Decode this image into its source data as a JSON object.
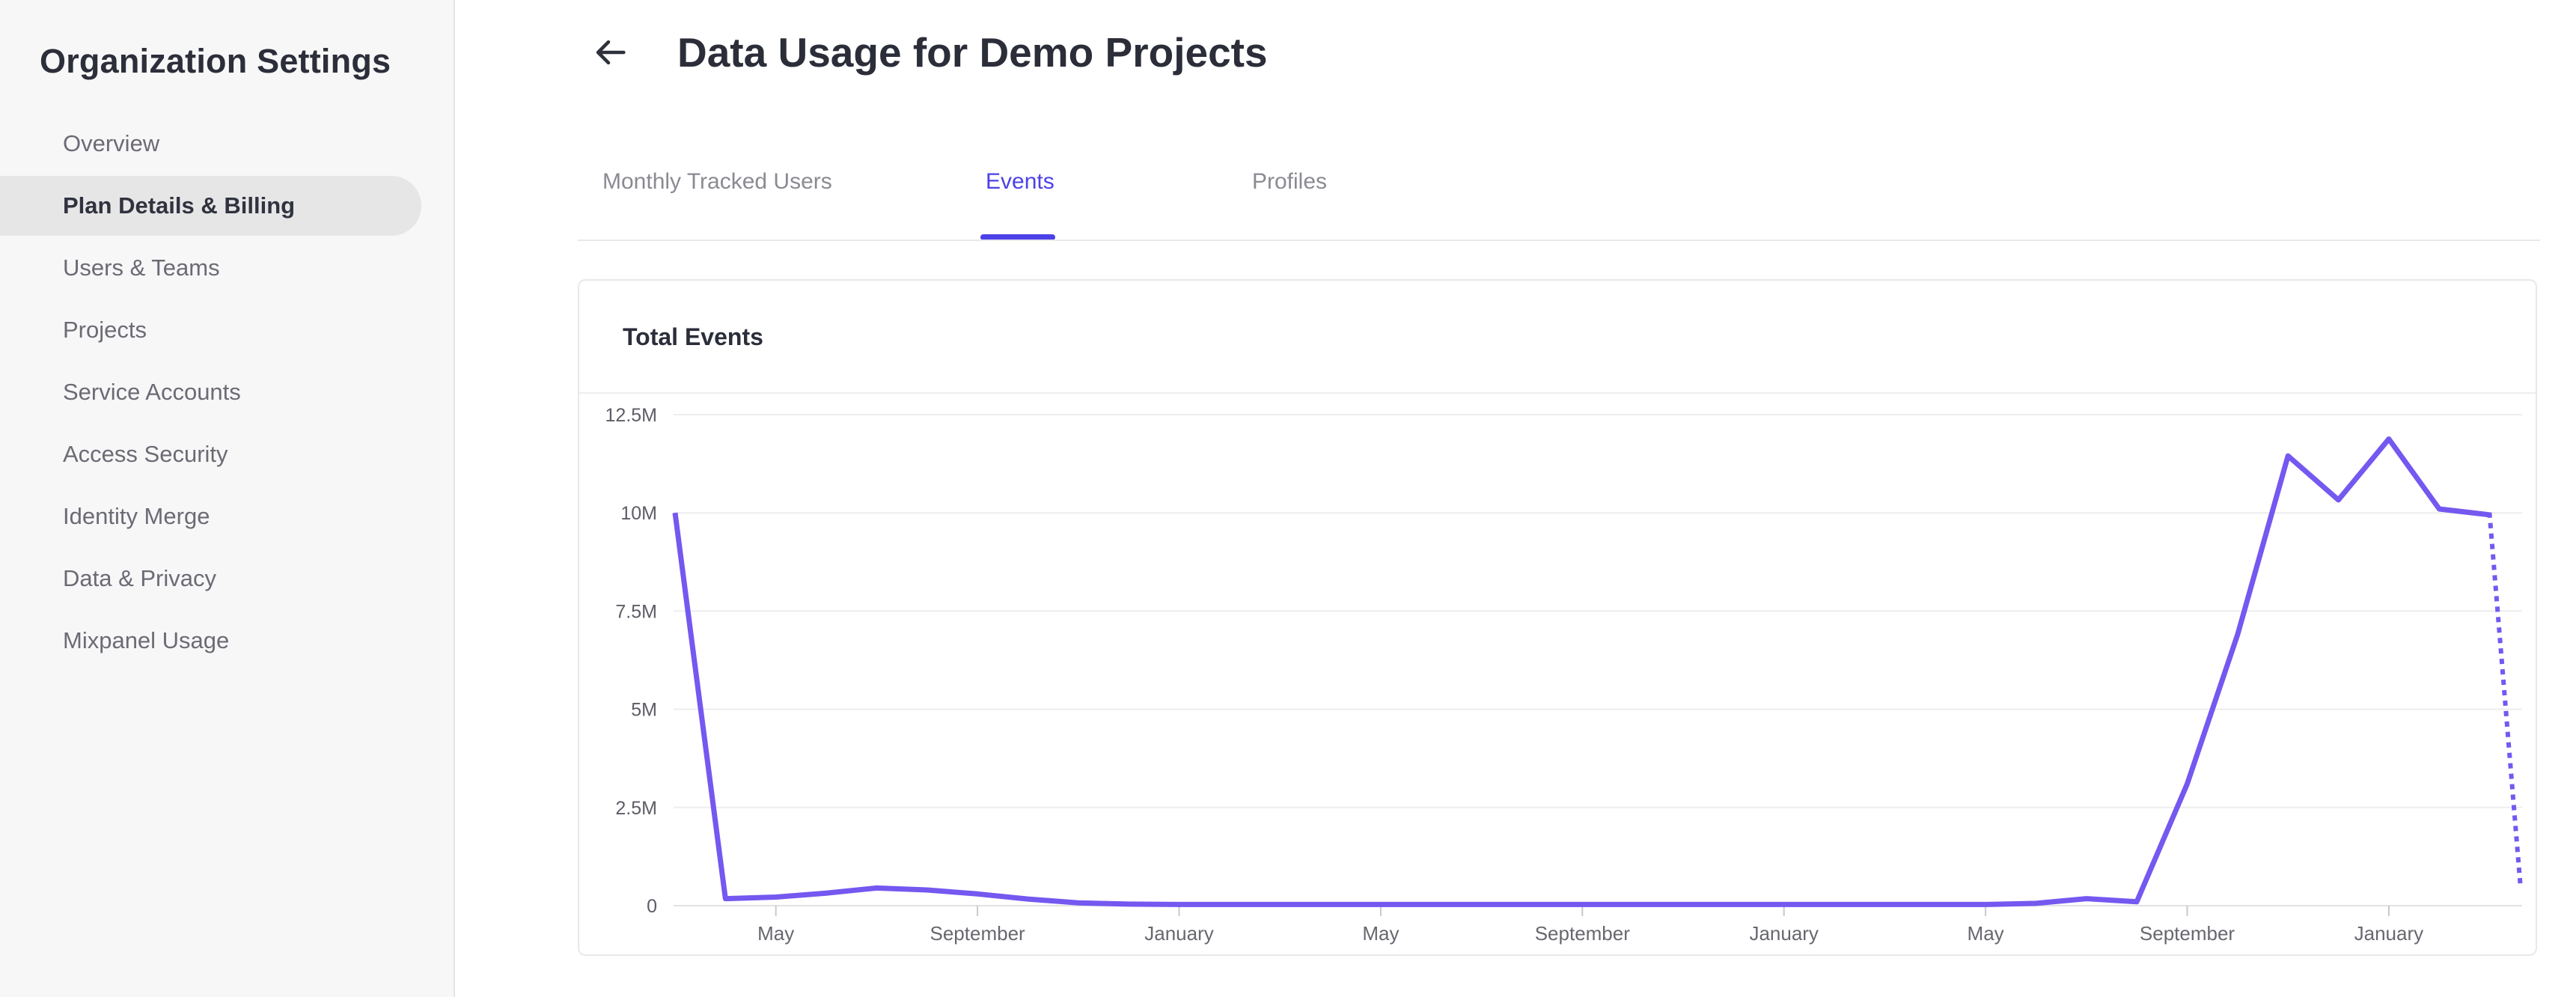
{
  "sidebar": {
    "title": "Organization Settings",
    "items": [
      {
        "label": "Overview",
        "selected": false
      },
      {
        "label": "Plan Details & Billing",
        "selected": true
      },
      {
        "label": "Users & Teams",
        "selected": false
      },
      {
        "label": "Projects",
        "selected": false
      },
      {
        "label": "Service Accounts",
        "selected": false
      },
      {
        "label": "Access Security",
        "selected": false
      },
      {
        "label": "Identity Merge",
        "selected": false
      },
      {
        "label": "Data & Privacy",
        "selected": false
      },
      {
        "label": "Mixpanel Usage",
        "selected": false
      }
    ]
  },
  "header": {
    "back_icon": "arrow-left-icon",
    "title": "Data Usage for Demo Projects"
  },
  "tabs": [
    {
      "label": "Monthly Tracked Users",
      "active": false
    },
    {
      "label": "Events",
      "active": true
    },
    {
      "label": "Profiles",
      "active": false
    }
  ],
  "card": {
    "title": "Total Events"
  },
  "chart_data": {
    "type": "line",
    "title": "Total Events",
    "y_tick_labels": [
      "12.5M",
      "10M",
      "7.5M",
      "5M",
      "2.5M",
      "0"
    ],
    "ylim": [
      0,
      12500000
    ],
    "x_tick_labels": [
      "May",
      "September",
      "January",
      "May",
      "September",
      "January",
      "May",
      "September",
      "January"
    ],
    "x_tick_month_indices": [
      2,
      6,
      10,
      14,
      18,
      22,
      26,
      30,
      34
    ],
    "values_millions": [
      10,
      0.18,
      0.22,
      0.32,
      0.45,
      0.4,
      0.3,
      0.17,
      0.07,
      0.04,
      0.03,
      0.03,
      0.03,
      0.03,
      0.03,
      0.03,
      0.03,
      0.03,
      0.03,
      0.03,
      0.03,
      0.03,
      0.03,
      0.03,
      0.03,
      0.03,
      0.03,
      0.06,
      0.18,
      0.1,
      3.1,
      6.9,
      11.45,
      10.33,
      11.88,
      10.1,
      9.95
    ],
    "projected_value_millions": 0.45,
    "grid": true,
    "legend": false
  },
  "colors": {
    "accent": "#4c41e6",
    "line": "#7458f0",
    "grid_line": "#ededee",
    "axis_line": "#e2e2e4",
    "tick_mark": "#c9c9cd",
    "y_label": "#5d5d66",
    "x_label": "#67676f"
  }
}
